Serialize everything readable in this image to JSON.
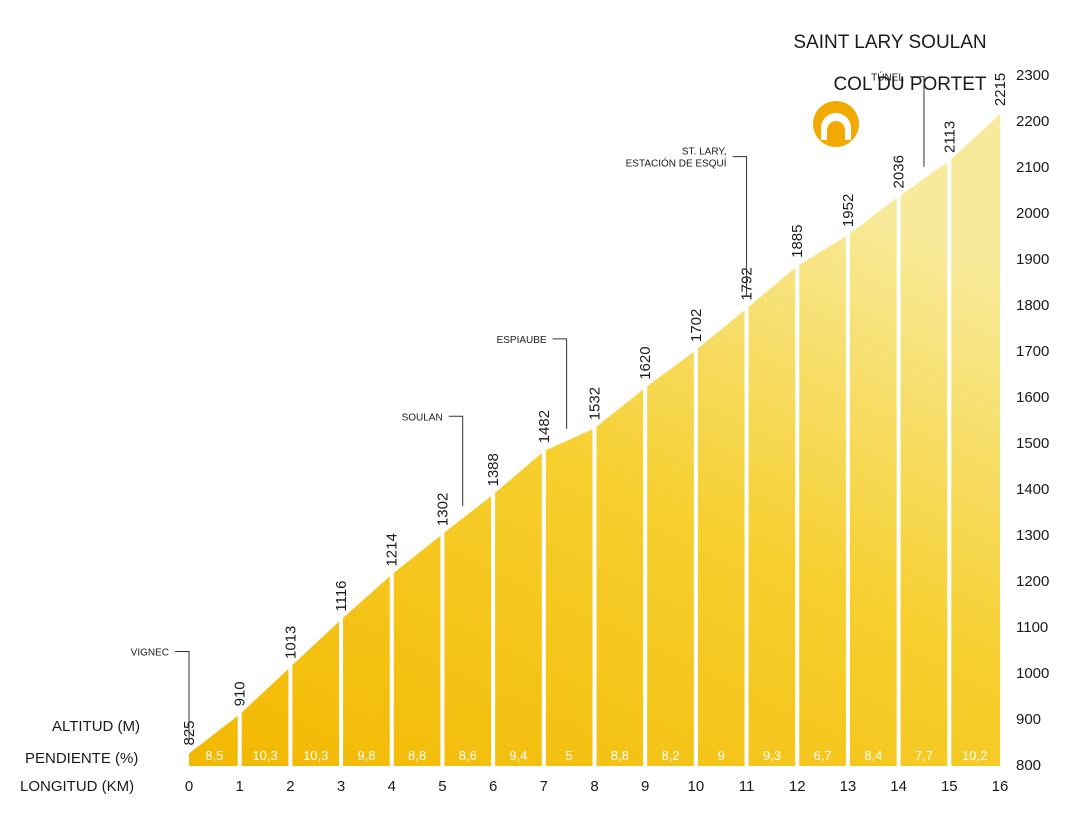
{
  "header": {
    "title_top": "SAINT LARY SOULAN",
    "title_sub": "COL DU PORTET"
  },
  "labels": {
    "altitude": "ALTITUD (M)",
    "gradient": "PENDIENTE (%)",
    "distance": "LONGITUD (KM)"
  },
  "icon": {
    "name": "tunnel-icon",
    "color": "#f2a900"
  },
  "colors": {
    "fill": "#f5c518",
    "light": "#f7e27a",
    "divider": "#ffffff"
  },
  "chart_data": {
    "type": "area",
    "x": [
      0,
      1,
      2,
      3,
      4,
      5,
      6,
      7,
      8,
      9,
      10,
      11,
      12,
      13,
      14,
      15,
      16
    ],
    "x_labels": [
      "0",
      "1",
      "2",
      "3",
      "4",
      "5",
      "6",
      "7",
      "8",
      "9",
      "10",
      "11",
      "12",
      "13",
      "14",
      "15",
      "16"
    ],
    "altitudes": [
      825,
      910,
      1013,
      1116,
      1214,
      1302,
      1388,
      1482,
      1532,
      1620,
      1702,
      1792,
      1885,
      1952,
      2036,
      2113,
      2215
    ],
    "altitude_labels": [
      "825",
      "910",
      "1013",
      "1116",
      "1214",
      "1302",
      "1388",
      "1482",
      "1532",
      "1620",
      "1702",
      "1792",
      "1885",
      "1952",
      "2036",
      "2113",
      "2215"
    ],
    "gradients": [
      "8,5",
      "10,3",
      "10,3",
      "9,8",
      "8,8",
      "8,6",
      "9,4",
      "5",
      "8,8",
      "8,2",
      "9",
      "9,3",
      "6,7",
      "8,4",
      "7,7",
      "10,2"
    ],
    "y_ticks": [
      "800",
      "900",
      "1000",
      "1100",
      "1200",
      "1300",
      "1400",
      "1500",
      "1600",
      "1700",
      "1800",
      "1900",
      "2000",
      "2100",
      "2200",
      "2300"
    ],
    "ylim": [
      800,
      2300
    ],
    "xlim": [
      0,
      16
    ],
    "annotations": [
      {
        "lines": [
          "VIGNEC"
        ],
        "km": 0
      },
      {
        "lines": [
          "SOULAN"
        ],
        "km": 5.4
      },
      {
        "lines": [
          "ESPIAUBE"
        ],
        "km": 7.45
      },
      {
        "lines": [
          "ST. LARY,",
          "ESTACIÓN DE ESQUÍ"
        ],
        "km": 11
      },
      {
        "lines": [
          "TÚNEL"
        ],
        "km": 14.5
      }
    ]
  }
}
